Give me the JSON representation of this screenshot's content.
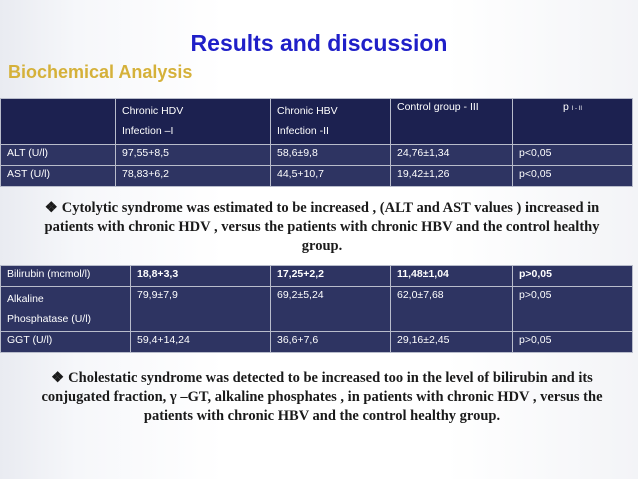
{
  "slide": {
    "title": "Results and discussion",
    "subtitle": "Biochemical Analysis"
  },
  "table1": {
    "headers": [
      "",
      "Chronic HDV",
      "Infection –I",
      "Chronic HBV",
      "Infection -II",
      "Control group - III",
      "p",
      "I - II"
    ],
    "rows": [
      {
        "label": "ALT (U/l)",
        "hdv": "97,55+8,5",
        "hbv": "58,6±9,8",
        "control": "24,76±1,34",
        "p": "p<0,05"
      },
      {
        "label": "AST (U/l)",
        "hdv": "78,83+6,2",
        "hbv": "44,5+10,7",
        "control": "19,42±1,26",
        "p": "p<0,05"
      }
    ]
  },
  "note1": {
    "bullet": "❖",
    "text": "Cytolytic syndrome was estimated to be increased , (ALT and AST values ) increased in patients with chronic HDV , versus the patients with chronic HBV and the control healthy group."
  },
  "table2": {
    "rows": [
      {
        "label": "Bilirubin (mcmol/l)",
        "hdv": "18,8+3,3",
        "hbv": "17,25+2,2",
        "control": "11,48±1,04",
        "p": "p>0,05"
      },
      {
        "label_1": "Alkaline",
        "label_2": "Phosphatase (U/l)",
        "hdv": "79,9±7,9",
        "hbv": "69,2±5,24",
        "control": "62,0±7,68",
        "p": "p>0,05"
      },
      {
        "label": "GGT (U/l)",
        "hdv": "59,4+14,24",
        "hbv": "36,6+7,6",
        "control": "29,16±2,45",
        "p": "p>0,05"
      }
    ]
  },
  "note2": {
    "bullet": "❖",
    "text": "Cholestatic syndrome was detected to be increased too in the level of bilirubin and its conjugated fraction, γ –GT, alkaline phosphates , in patients with chronic HDV , versus the patients with chronic HBV and the control healthy group."
  }
}
